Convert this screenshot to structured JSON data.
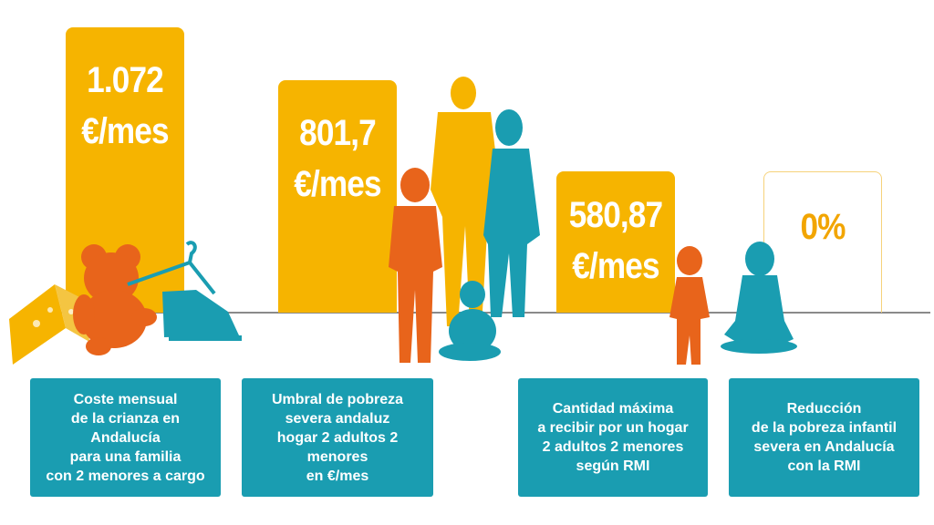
{
  "colors": {
    "bar": "#f6b400",
    "bar_outline": "#f6c94d",
    "caption_bg": "#1a9db1",
    "orange": "#e8641b",
    "teal": "#1a9db1",
    "yellow": "#f6b400",
    "axis": "#8a8a8a"
  },
  "chart_data": {
    "type": "bar",
    "categories": [
      "Coste mensual de la crianza en Andalucía para una familia con 2 menores a cargo",
      "Umbral de pobreza severa andaluz hogar 2 adultos 2 menores en €/mes",
      "Cantidad máxima a recibir por un hogar 2 adultos 2 menores según RMI",
      "Reducción de la pobreza infantil severa en Andalucía con la RMI"
    ],
    "values": [
      1072,
      801.7,
      580.87,
      0
    ],
    "units": [
      "€/mes",
      "€/mes",
      "€/mes",
      "%"
    ],
    "ylim": [
      0,
      1100
    ],
    "grid": false,
    "legend": "none"
  },
  "bars": [
    {
      "value_label": "1.072\n€/mes",
      "caption": "Coste mensual\nde la crianza en Andalucía\npara una familia\ncon 2 menores a cargo"
    },
    {
      "value_label": "801,7\n€/mes",
      "caption": "Umbral de pobreza\nsevera andaluz\nhogar 2 adultos 2 menores\nen €/mes"
    },
    {
      "value_label": "580,87\n€/mes",
      "caption": "Cantidad máxima\na recibir por un hogar\n2 adultos 2 menores\nsegún RMI"
    },
    {
      "value_label": "0%",
      "caption": "Reducción\nde la  pobreza infantil\nsevera en Andalucía\ncon la RMI"
    }
  ],
  "icons": [
    "cheese-icon",
    "teddy-bear-icon",
    "clothes-hanger-icon",
    "shoe-icon",
    "family-silhouette-icon",
    "toddler-silhouette-icon",
    "sitting-girl-silhouette-icon"
  ]
}
